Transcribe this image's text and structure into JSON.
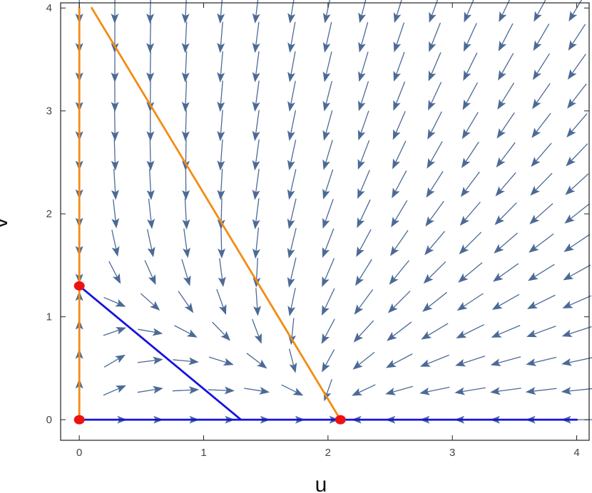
{
  "chart_data": {
    "type": "vector-field",
    "xlabel": "u",
    "ylabel": "v",
    "xlim": [
      -0.15,
      4.1
    ],
    "ylim": [
      -0.2,
      4.05
    ],
    "xticks": [
      0,
      1,
      2,
      3,
      4
    ],
    "yticks": [
      0,
      1,
      2,
      3,
      4
    ],
    "xtick_labels": [
      "0",
      "1",
      "2",
      "3",
      "4"
    ],
    "ytick_labels": [
      "0",
      "1",
      "2",
      "3",
      "4"
    ],
    "frame": true,
    "grid": false,
    "arrow_color": "#4c6a96",
    "lines": [
      {
        "color": "#f28c13",
        "points": [
          [
            0,
            0
          ],
          [
            0,
            4
          ]
        ]
      },
      {
        "color": "#f28c13",
        "points": [
          [
            0.1,
            4
          ],
          [
            2.1,
            0
          ]
        ]
      },
      {
        "color": "#1512e0",
        "points": [
          [
            0,
            1.3
          ],
          [
            1.3,
            0
          ]
        ]
      },
      {
        "color": "#1512e0",
        "points": [
          [
            0,
            0
          ],
          [
            4,
            0
          ]
        ]
      }
    ],
    "points": [
      {
        "u": 0,
        "v": 0,
        "color": "#ee1111"
      },
      {
        "u": 0,
        "v": 1.3,
        "color": "#ee1111"
      },
      {
        "u": 2.1,
        "v": 0,
        "color": "#ee1111"
      }
    ]
  }
}
